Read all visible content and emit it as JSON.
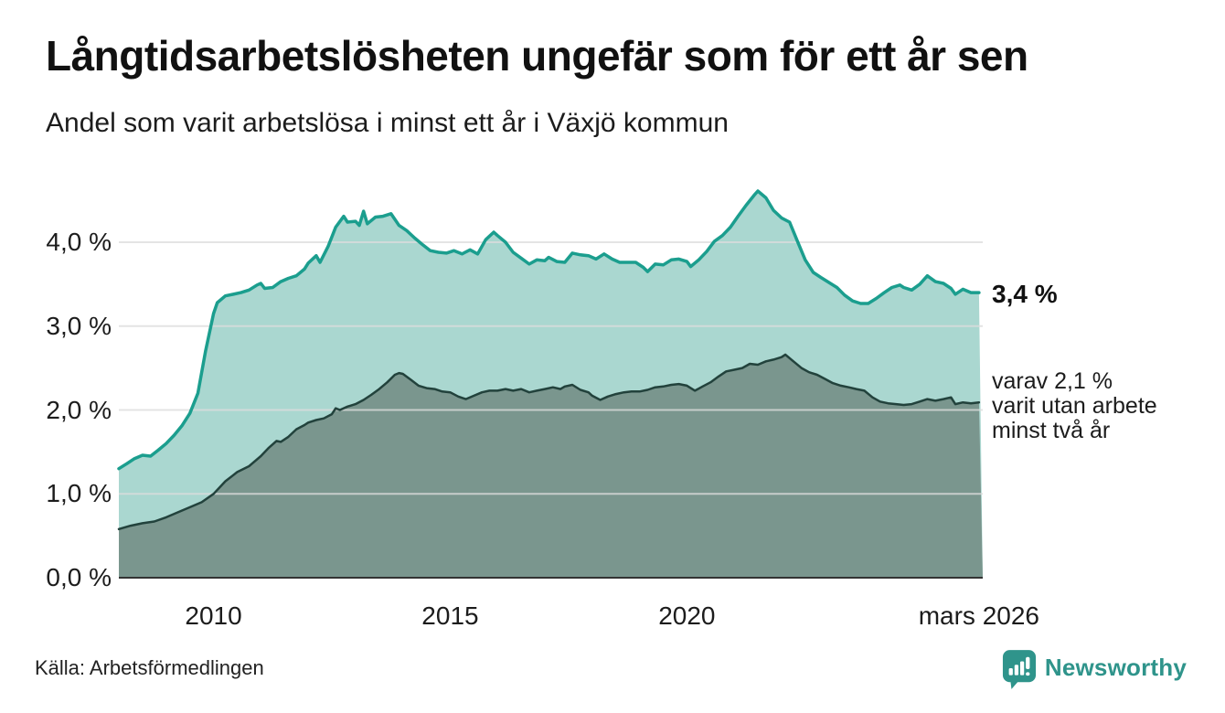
{
  "header": {
    "title": "Långtidsarbetslösheten ungefär som för ett år sen",
    "subtitle": "Andel som varit arbetslösa i minst ett år i Växjö kommun"
  },
  "annotations": {
    "latest_total": "3,4 %",
    "secondary_line1": "varav 2,1 %",
    "secondary_line2": "varit utan arbete",
    "secondary_line3": "minst två år"
  },
  "footer": {
    "source": "Källa: Arbetsförmedlingen",
    "brand_name": "Newsworthy",
    "brand_logo_icon": "speech-bubble-bar-chart-icon",
    "brand_color": "#2f948b"
  },
  "chart_data": {
    "type": "area",
    "title": "Långtidsarbetslösheten ungefär som för ett år sen",
    "subtitle": "Andel som varit arbetslösa i minst ett år i Växjö kommun",
    "xlabel": "",
    "ylabel": "",
    "unit": "%",
    "xlim": [
      2008.0,
      2026.25
    ],
    "ylim": [
      0,
      4.75
    ],
    "grid": true,
    "grid_color": "#dcdcdc",
    "baseline_color": "#333333",
    "legend_position": "right-edge-annotations",
    "x_ticks": [
      {
        "label": "2010",
        "x": 2010
      },
      {
        "label": "2015",
        "x": 2015
      },
      {
        "label": "2020",
        "x": 2020
      },
      {
        "label": "mars 2026",
        "x": 2026.17
      }
    ],
    "y_ticks": [
      {
        "label": "0,0 %",
        "value": 0
      },
      {
        "label": "1,0 %",
        "value": 1
      },
      {
        "label": "2,0 %",
        "value": 2
      },
      {
        "label": "3,0 %",
        "value": 3
      },
      {
        "label": "4,0 %",
        "value": 4
      }
    ],
    "series": [
      {
        "name": "Andel arbetslösa minst ett år",
        "latest_value": 3.4,
        "line_color": "#1b9e8e",
        "fill_color": "#aad7d0",
        "line_width": 3.5,
        "points": [
          [
            2008.0,
            1.3
          ],
          [
            2008.17,
            1.36
          ],
          [
            2008.33,
            1.42
          ],
          [
            2008.5,
            1.46
          ],
          [
            2008.67,
            1.45
          ],
          [
            2008.83,
            1.52
          ],
          [
            2009.0,
            1.6
          ],
          [
            2009.17,
            1.7
          ],
          [
            2009.33,
            1.81
          ],
          [
            2009.5,
            1.96
          ],
          [
            2009.67,
            2.2
          ],
          [
            2009.83,
            2.7
          ],
          [
            2010.0,
            3.15
          ],
          [
            2010.08,
            3.28
          ],
          [
            2010.25,
            3.36
          ],
          [
            2010.42,
            3.38
          ],
          [
            2010.58,
            3.4
          ],
          [
            2010.75,
            3.43
          ],
          [
            2010.92,
            3.49
          ],
          [
            2011.0,
            3.51
          ],
          [
            2011.08,
            3.45
          ],
          [
            2011.25,
            3.46
          ],
          [
            2011.42,
            3.53
          ],
          [
            2011.58,
            3.57
          ],
          [
            2011.75,
            3.6
          ],
          [
            2011.92,
            3.68
          ],
          [
            2012.0,
            3.75
          ],
          [
            2012.17,
            3.84
          ],
          [
            2012.25,
            3.76
          ],
          [
            2012.42,
            3.95
          ],
          [
            2012.58,
            4.18
          ],
          [
            2012.75,
            4.31
          ],
          [
            2012.83,
            4.24
          ],
          [
            2013.0,
            4.25
          ],
          [
            2013.08,
            4.2
          ],
          [
            2013.17,
            4.37
          ],
          [
            2013.25,
            4.22
          ],
          [
            2013.42,
            4.3
          ],
          [
            2013.58,
            4.31
          ],
          [
            2013.75,
            4.34
          ],
          [
            2013.92,
            4.2
          ],
          [
            2014.08,
            4.14
          ],
          [
            2014.25,
            4.05
          ],
          [
            2014.42,
            3.97
          ],
          [
            2014.58,
            3.9
          ],
          [
            2014.75,
            3.88
          ],
          [
            2014.92,
            3.87
          ],
          [
            2015.08,
            3.9
          ],
          [
            2015.25,
            3.86
          ],
          [
            2015.42,
            3.91
          ],
          [
            2015.58,
            3.86
          ],
          [
            2015.75,
            4.03
          ],
          [
            2015.92,
            4.12
          ],
          [
            2016.0,
            4.08
          ],
          [
            2016.17,
            4.0
          ],
          [
            2016.33,
            3.88
          ],
          [
            2016.5,
            3.81
          ],
          [
            2016.67,
            3.74
          ],
          [
            2016.83,
            3.79
          ],
          [
            2017.0,
            3.78
          ],
          [
            2017.08,
            3.82
          ],
          [
            2017.25,
            3.77
          ],
          [
            2017.42,
            3.76
          ],
          [
            2017.58,
            3.87
          ],
          [
            2017.75,
            3.85
          ],
          [
            2017.92,
            3.84
          ],
          [
            2018.08,
            3.8
          ],
          [
            2018.25,
            3.86
          ],
          [
            2018.42,
            3.8
          ],
          [
            2018.58,
            3.76
          ],
          [
            2018.75,
            3.76
          ],
          [
            2018.92,
            3.76
          ],
          [
            2019.08,
            3.7
          ],
          [
            2019.17,
            3.65
          ],
          [
            2019.33,
            3.74
          ],
          [
            2019.5,
            3.73
          ],
          [
            2019.67,
            3.79
          ],
          [
            2019.83,
            3.8
          ],
          [
            2020.0,
            3.77
          ],
          [
            2020.08,
            3.71
          ],
          [
            2020.25,
            3.79
          ],
          [
            2020.42,
            3.89
          ],
          [
            2020.58,
            4.01
          ],
          [
            2020.75,
            4.08
          ],
          [
            2020.92,
            4.18
          ],
          [
            2021.08,
            4.31
          ],
          [
            2021.25,
            4.44
          ],
          [
            2021.42,
            4.56
          ],
          [
            2021.5,
            4.61
          ],
          [
            2021.67,
            4.53
          ],
          [
            2021.83,
            4.38
          ],
          [
            2022.0,
            4.29
          ],
          [
            2022.17,
            4.24
          ],
          [
            2022.33,
            4.02
          ],
          [
            2022.5,
            3.79
          ],
          [
            2022.67,
            3.64
          ],
          [
            2022.83,
            3.58
          ],
          [
            2023.0,
            3.52
          ],
          [
            2023.17,
            3.46
          ],
          [
            2023.33,
            3.37
          ],
          [
            2023.5,
            3.3
          ],
          [
            2023.67,
            3.27
          ],
          [
            2023.83,
            3.27
          ],
          [
            2024.0,
            3.33
          ],
          [
            2024.17,
            3.4
          ],
          [
            2024.33,
            3.46
          ],
          [
            2024.5,
            3.49
          ],
          [
            2024.58,
            3.46
          ],
          [
            2024.75,
            3.43
          ],
          [
            2024.92,
            3.5
          ],
          [
            2025.08,
            3.6
          ],
          [
            2025.25,
            3.53
          ],
          [
            2025.42,
            3.51
          ],
          [
            2025.58,
            3.45
          ],
          [
            2025.67,
            3.38
          ],
          [
            2025.83,
            3.44
          ],
          [
            2026.0,
            3.4
          ],
          [
            2026.17,
            3.4
          ]
        ]
      },
      {
        "name": "varav utan arbete minst två år",
        "latest_value": 2.1,
        "line_color": "#22423c",
        "fill_color": "#7a968e",
        "line_width": 2.5,
        "points": [
          [
            2008.0,
            0.58
          ],
          [
            2008.25,
            0.62
          ],
          [
            2008.5,
            0.65
          ],
          [
            2008.75,
            0.67
          ],
          [
            2009.0,
            0.72
          ],
          [
            2009.25,
            0.78
          ],
          [
            2009.5,
            0.84
          ],
          [
            2009.75,
            0.9
          ],
          [
            2010.0,
            1.0
          ],
          [
            2010.25,
            1.15
          ],
          [
            2010.5,
            1.26
          ],
          [
            2010.75,
            1.33
          ],
          [
            2011.0,
            1.45
          ],
          [
            2011.17,
            1.55
          ],
          [
            2011.33,
            1.63
          ],
          [
            2011.42,
            1.62
          ],
          [
            2011.58,
            1.68
          ],
          [
            2011.75,
            1.77
          ],
          [
            2011.92,
            1.82
          ],
          [
            2012.0,
            1.85
          ],
          [
            2012.17,
            1.88
          ],
          [
            2012.33,
            1.9
          ],
          [
            2012.5,
            1.95
          ],
          [
            2012.58,
            2.02
          ],
          [
            2012.67,
            2.0
          ],
          [
            2012.83,
            2.04
          ],
          [
            2013.0,
            2.07
          ],
          [
            2013.17,
            2.12
          ],
          [
            2013.33,
            2.18
          ],
          [
            2013.5,
            2.25
          ],
          [
            2013.67,
            2.33
          ],
          [
            2013.83,
            2.42
          ],
          [
            2013.92,
            2.44
          ],
          [
            2014.0,
            2.43
          ],
          [
            2014.17,
            2.36
          ],
          [
            2014.33,
            2.29
          ],
          [
            2014.5,
            2.26
          ],
          [
            2014.67,
            2.25
          ],
          [
            2014.83,
            2.22
          ],
          [
            2015.0,
            2.21
          ],
          [
            2015.17,
            2.16
          ],
          [
            2015.33,
            2.13
          ],
          [
            2015.5,
            2.17
          ],
          [
            2015.67,
            2.21
          ],
          [
            2015.83,
            2.23
          ],
          [
            2016.0,
            2.23
          ],
          [
            2016.17,
            2.25
          ],
          [
            2016.33,
            2.23
          ],
          [
            2016.5,
            2.25
          ],
          [
            2016.67,
            2.21
          ],
          [
            2016.83,
            2.23
          ],
          [
            2017.0,
            2.25
          ],
          [
            2017.17,
            2.27
          ],
          [
            2017.33,
            2.25
          ],
          [
            2017.42,
            2.28
          ],
          [
            2017.58,
            2.3
          ],
          [
            2017.75,
            2.24
          ],
          [
            2017.92,
            2.21
          ],
          [
            2018.0,
            2.17
          ],
          [
            2018.17,
            2.12
          ],
          [
            2018.33,
            2.16
          ],
          [
            2018.5,
            2.19
          ],
          [
            2018.67,
            2.21
          ],
          [
            2018.83,
            2.22
          ],
          [
            2019.0,
            2.22
          ],
          [
            2019.17,
            2.24
          ],
          [
            2019.33,
            2.27
          ],
          [
            2019.5,
            2.28
          ],
          [
            2019.67,
            2.3
          ],
          [
            2019.83,
            2.31
          ],
          [
            2020.0,
            2.29
          ],
          [
            2020.17,
            2.23
          ],
          [
            2020.33,
            2.28
          ],
          [
            2020.5,
            2.33
          ],
          [
            2020.67,
            2.4
          ],
          [
            2020.83,
            2.46
          ],
          [
            2021.0,
            2.48
          ],
          [
            2021.17,
            2.5
          ],
          [
            2021.33,
            2.55
          ],
          [
            2021.5,
            2.54
          ],
          [
            2021.67,
            2.58
          ],
          [
            2021.83,
            2.6
          ],
          [
            2022.0,
            2.63
          ],
          [
            2022.08,
            2.66
          ],
          [
            2022.25,
            2.58
          ],
          [
            2022.42,
            2.5
          ],
          [
            2022.58,
            2.45
          ],
          [
            2022.75,
            2.42
          ],
          [
            2022.92,
            2.37
          ],
          [
            2023.08,
            2.32
          ],
          [
            2023.25,
            2.29
          ],
          [
            2023.42,
            2.27
          ],
          [
            2023.58,
            2.25
          ],
          [
            2023.75,
            2.23
          ],
          [
            2023.92,
            2.15
          ],
          [
            2024.08,
            2.1
          ],
          [
            2024.25,
            2.08
          ],
          [
            2024.42,
            2.07
          ],
          [
            2024.58,
            2.06
          ],
          [
            2024.75,
            2.07
          ],
          [
            2024.92,
            2.1
          ],
          [
            2025.08,
            2.13
          ],
          [
            2025.25,
            2.11
          ],
          [
            2025.42,
            2.13
          ],
          [
            2025.58,
            2.15
          ],
          [
            2025.67,
            2.07
          ],
          [
            2025.83,
            2.09
          ],
          [
            2026.0,
            2.08
          ],
          [
            2026.17,
            2.09
          ]
        ]
      }
    ]
  }
}
